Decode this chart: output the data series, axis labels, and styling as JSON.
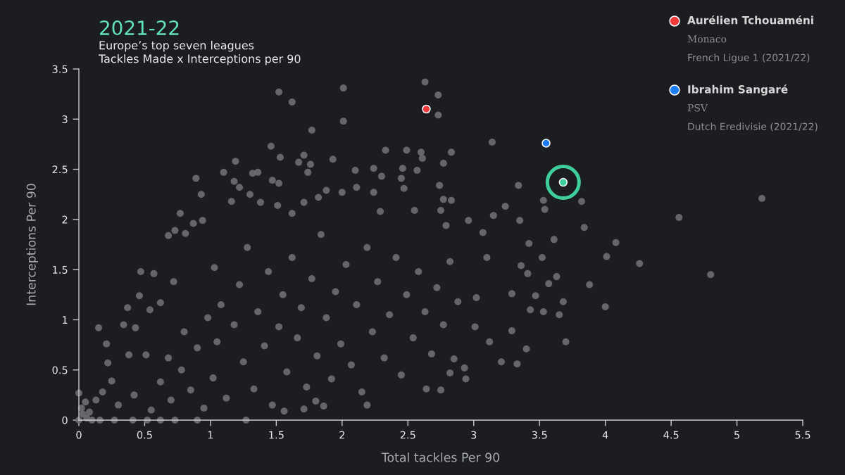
{
  "chart_data": {
    "type": "scatter",
    "title": "2021-22",
    "subtitle": "Europe’s top seven leagues\nTackles Made x Interceptions per 90",
    "xlabel": "Total tackles Per 90",
    "ylabel": "Interceptions Per 90",
    "xlim": [
      0,
      5.5
    ],
    "xticks": [
      0,
      0.5,
      1,
      1.5,
      2,
      2.5,
      3,
      3.5,
      4,
      4.5,
      5,
      5.5
    ],
    "ylim": [
      0,
      3.5
    ],
    "yticks": [
      0,
      0.5,
      1,
      1.5,
      2,
      2.5,
      3,
      3.5
    ],
    "marker": "circle",
    "legend": "top right",
    "annotations": [
      "Monaco",
      "French Ligue 1 (2021/22)",
      "PSV",
      "Dutch Eredivisie (2021/22)"
    ],
    "series": [
      {
        "color": "#6b6d71",
        "x": [
          0.89,
          0.93,
          0.77,
          0.87,
          0.94,
          0.73,
          0.68,
          0.81,
          0.47,
          0.57,
          0.46,
          0.37,
          0.15,
          0.34,
          0.21,
          0.22,
          0.43,
          0.38,
          0.51,
          0.54,
          0.62,
          0.72,
          0,
          0.05,
          0.13,
          0.25,
          0.18,
          0.16,
          0.27,
          0.41,
          0.52,
          0.62,
          0.73,
          0.9,
          1.27,
          0,
          0.03,
          0.06,
          0.02,
          0.08,
          0.1,
          0.3,
          0.42,
          0.55,
          0.62,
          0.7,
          0.78,
          0.85,
          0.9,
          0.95,
          0.98,
          0.68,
          0.8,
          1.52,
          1.62,
          2.01,
          2.01,
          1.77,
          1.46,
          1.53,
          1.71,
          1.67,
          1.76,
          1.74,
          1.93,
          1.19,
          1.1,
          1.18,
          1.22,
          1.32,
          1.36,
          1.47,
          1.52,
          1.3,
          1.38,
          1.16,
          1.51,
          1.62,
          1.88,
          2.0,
          1.82,
          1.71,
          1.71,
          1.56,
          1.8,
          1.86,
          2.63,
          2.73,
          2.73,
          2.33,
          2.49,
          2.6,
          2.61,
          2.83,
          2.77,
          2.24,
          2.46,
          2.57,
          2.1,
          2.3,
          2.45,
          2.47,
          2.11,
          2.74,
          2.24,
          2.77,
          2.83,
          2.55,
          2.75,
          2.96,
          2.79,
          2.29,
          3.07,
          2.94,
          2.75,
          2.64,
          2.82,
          2.19,
          2.85,
          3.01,
          3.14,
          3.34,
          3.53,
          3.54,
          3.82,
          3.84,
          3.24,
          3.15,
          3.35,
          3.61,
          4.08,
          4.01,
          3.42,
          3.52,
          3.36,
          3.63,
          3.57,
          3.88,
          3.41,
          3.47,
          3.68,
          4.0,
          3.53,
          3.65,
          3.43,
          3.29,
          3.7,
          3.4,
          3.21,
          3.33,
          3.29,
          5.19,
          4.56,
          4.26,
          4.8,
          1.02,
          1.05,
          1.08,
          1.03,
          1.12,
          1.18,
          1.22,
          1.25,
          1.28,
          1.33,
          1.36,
          1.41,
          1.44,
          1.47,
          1.52,
          1.55,
          1.58,
          1.62,
          1.66,
          1.69,
          1.73,
          1.77,
          1.81,
          1.84,
          1.88,
          1.92,
          1.95,
          1.99,
          2.03,
          2.07,
          2.11,
          2.15,
          2.19,
          2.23,
          2.27,
          2.32,
          2.36,
          2.41,
          2.45,
          2.49,
          2.54,
          2.58,
          2.63,
          2.68,
          2.72,
          2.77,
          2.82,
          2.88,
          2.93,
          3.02,
          3.1,
          3.12
        ],
        "values": [
          2.41,
          2.25,
          2.06,
          1.96,
          1.99,
          1.89,
          1.84,
          1.86,
          1.48,
          1.46,
          1.24,
          1.12,
          0.92,
          0.95,
          0.76,
          0.57,
          0.92,
          0.65,
          0.65,
          1.1,
          1.17,
          1.38,
          0.27,
          0.18,
          0.2,
          0.39,
          0.28,
          0,
          0,
          0,
          0,
          0,
          0,
          0,
          0,
          0,
          0.06,
          0.02,
          0.12,
          0.08,
          0,
          0.15,
          0.25,
          0.1,
          0.38,
          0.2,
          0.5,
          0.3,
          0.72,
          0.12,
          1.02,
          0.62,
          0.88,
          3.27,
          3.17,
          3.31,
          2.98,
          2.89,
          2.73,
          2.62,
          2.64,
          2.57,
          2.55,
          2.47,
          2.6,
          2.58,
          2.47,
          2.38,
          2.32,
          2.46,
          2.47,
          2.39,
          2.36,
          2.25,
          2.17,
          2.18,
          2.14,
          2.06,
          2.29,
          2.27,
          2.22,
          2.17,
          0.11,
          0.09,
          0.19,
          0.14,
          3.37,
          3.24,
          3.04,
          2.69,
          2.69,
          2.67,
          2.61,
          2.67,
          2.56,
          2.51,
          2.51,
          2.49,
          2.49,
          2.43,
          2.41,
          2.31,
          2.32,
          2.34,
          2.27,
          2.2,
          2.19,
          2.09,
          2.09,
          1.99,
          1.94,
          2.08,
          1.87,
          0.41,
          0.3,
          0.31,
          0.47,
          0.15,
          0.61,
          0.93,
          2.77,
          2.34,
          2.19,
          2.1,
          2.18,
          1.92,
          2.13,
          2.04,
          1.99,
          1.8,
          1.77,
          1.63,
          1.76,
          1.62,
          1.54,
          1.43,
          1.36,
          1.35,
          1.46,
          1.24,
          1.18,
          1.13,
          1.08,
          1.05,
          1.1,
          1.26,
          0.78,
          0.71,
          0.58,
          0.56,
          0.89,
          2.21,
          2.02,
          1.56,
          1.45,
          0.42,
          0.78,
          1.15,
          1.52,
          0.22,
          0.95,
          1.35,
          0.58,
          1.72,
          0.31,
          1.08,
          0.74,
          1.48,
          0.15,
          0.93,
          1.25,
          0.48,
          1.62,
          0.82,
          1.12,
          0.33,
          1.41,
          0.64,
          1.85,
          1.02,
          0.41,
          1.28,
          0.76,
          1.55,
          0.55,
          1.15,
          0.28,
          1.72,
          0.88,
          1.38,
          0.62,
          1.05,
          1.62,
          0.45,
          1.25,
          0.82,
          1.48,
          1.08,
          0.66,
          1.32,
          0.95,
          1.58,
          1.18,
          0.52,
          1.22,
          1.62,
          0.78
        ]
      },
      {
        "name": "Aurélien Tchouaméni",
        "color": "#f03a3c",
        "x": [
          2.64
        ],
        "values": [
          3.1
        ]
      },
      {
        "name": "Ibrahim Sangaré",
        "color": "#1b7cf4",
        "x": [
          3.55
        ],
        "values": [
          2.76
        ]
      },
      {
        "color": "#3ecf9c",
        "x": [
          3.68
        ],
        "values": [
          2.37
        ]
      }
    ]
  }
}
